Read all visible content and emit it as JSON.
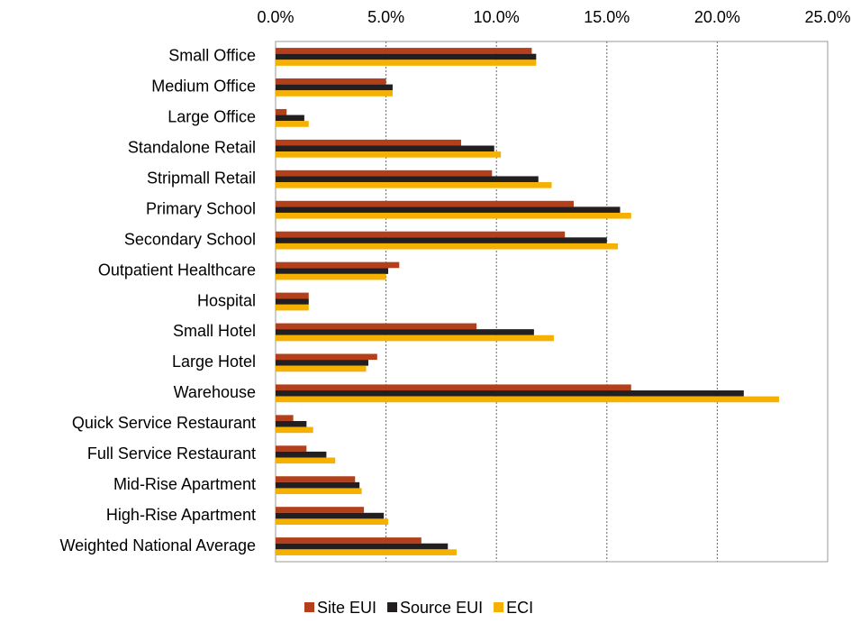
{
  "chart_data": {
    "type": "hbar",
    "categories": [
      "Small Office",
      "Medium Office",
      "Large Office",
      "Standalone Retail",
      "Stripmall Retail",
      "Primary School",
      "Secondary School",
      "Outpatient Healthcare",
      "Hospital",
      "Small Hotel",
      "Large Hotel",
      "Warehouse",
      "Quick Service Restaurant",
      "Full Service Restaurant",
      "Mid-Rise Apartment",
      "High-Rise Apartment",
      "Weighted National Average"
    ],
    "series": [
      {
        "name": "Site EUI",
        "color": "#b3401b",
        "values": [
          11.6,
          5.0,
          0.5,
          8.4,
          9.8,
          13.5,
          13.1,
          5.6,
          1.5,
          9.1,
          4.6,
          16.1,
          0.8,
          1.4,
          3.6,
          4.0,
          6.6
        ]
      },
      {
        "name": "Source EUI",
        "color": "#231f20",
        "values": [
          11.8,
          5.3,
          1.3,
          9.9,
          11.9,
          15.6,
          15.0,
          5.1,
          1.5,
          11.7,
          4.2,
          21.2,
          1.4,
          2.3,
          3.8,
          4.9,
          7.8
        ]
      },
      {
        "name": "ECI",
        "color": "#f5b000",
        "values": [
          11.8,
          5.3,
          1.5,
          10.2,
          12.5,
          16.1,
          15.5,
          5.0,
          1.5,
          12.6,
          4.1,
          22.8,
          1.7,
          2.7,
          3.9,
          5.1,
          8.2
        ]
      }
    ],
    "xlim": [
      0,
      25
    ],
    "xticks": [
      {
        "value": 0,
        "label": "0.0%"
      },
      {
        "value": 5,
        "label": "5.0%"
      },
      {
        "value": 10,
        "label": "10.0%"
      },
      {
        "value": 15,
        "label": "15.0%"
      },
      {
        "value": 20,
        "label": "20.0%"
      },
      {
        "value": 25,
        "label": "25.0%"
      }
    ],
    "grid": true,
    "legend": "bottom"
  }
}
